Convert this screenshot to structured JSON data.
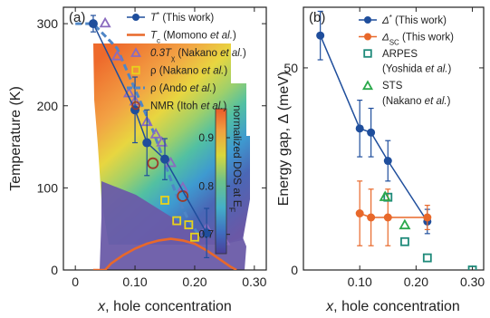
{
  "chart_data": [
    {
      "panel_label": "(a)",
      "type": "scatter",
      "xlabel_italic": "x",
      "xlabel_rest": ", hole concentration",
      "ylabel": "Temperature (K)",
      "xlim": [
        -0.02,
        0.32
      ],
      "ylim": [
        0,
        320
      ],
      "xticks": [
        "0",
        "0.10",
        "0.20",
        "0.30"
      ],
      "xtick_values": [
        0,
        0.1,
        0.2,
        0.3
      ],
      "yticks": [
        "0",
        "100",
        "200",
        "300"
      ],
      "ytick_values": [
        0,
        100,
        200,
        300
      ],
      "colorbar": {
        "label": "normalized DOS at E",
        "label_sub": "F",
        "ticks": [
          "0.9",
          "0.8",
          "0.7"
        ],
        "tick_values": [
          0.9,
          0.8,
          0.7
        ],
        "range": [
          0.66,
          0.96
        ]
      },
      "legend": [
        {
          "marker": "circle-line",
          "color": "#1f4e9c",
          "label": "T* (This work)",
          "symbol": "T",
          "sup": "*",
          "note": " (This work)"
        },
        {
          "marker": "line",
          "color": "#e8682a",
          "label": "Tc (Momono et al.)",
          "symbol": "T",
          "sub": "c",
          "note": " (Momono ",
          "etal": "et al.",
          "tail": ")"
        },
        {
          "marker": "triangle",
          "color": "#8a6bbf",
          "label": "0.3Tχ (Nakano et al.)",
          "symbol": "0.3T",
          "sub": "χ",
          "note": " (Nakano ",
          "etal": "et al.",
          "tail": ")"
        },
        {
          "marker": "square",
          "color": "#e8d21c",
          "label": "ρ (Nakano et al.)",
          "symbol": "ρ",
          "note": " (Nakano ",
          "etal": "et al.",
          "tail": ")"
        },
        {
          "marker": "dash",
          "color": "#4f86c6",
          "label": "ρ (Ando et al.)",
          "symbol": "ρ",
          "note": " (Ando ",
          "etal": "et al.",
          "tail": ")"
        },
        {
          "marker": "circle",
          "color": "#9c3a2a",
          "label": "NMR (Itoh et al.)",
          "symbol": "NMR",
          "note": " (Itoh ",
          "etal": "et al.",
          "tail": ")"
        }
      ],
      "series": [
        {
          "name": "T* (This work)",
          "color": "#1f4e9c",
          "x": [
            0.03,
            0.1,
            0.12,
            0.15,
            0.22
          ],
          "y": [
            300,
            195,
            155,
            135,
            45
          ],
          "yerr": [
            10,
            40,
            40,
            25,
            30
          ]
        },
        {
          "name": "Tc (Momono et al.)",
          "color": "#e8682a",
          "x": [
            0.03,
            0.05,
            0.06,
            0.08,
            0.1,
            0.12,
            0.14,
            0.16,
            0.18,
            0.2,
            0.22,
            0.24,
            0.26,
            0.27
          ],
          "y": [
            0,
            0,
            8,
            18,
            26,
            32,
            36,
            38,
            36,
            32,
            24,
            14,
            4,
            0
          ]
        },
        {
          "name": "0.3Tχ (Nakano et al.)",
          "color": "#8a6bbf",
          "x": [
            0.05,
            0.07,
            0.09,
            0.1,
            0.12,
            0.135,
            0.145,
            0.16,
            0.18,
            0.22,
            0.25
          ],
          "y": [
            300,
            260,
            215,
            205,
            180,
            165,
            155,
            130,
            100,
            50,
            35
          ]
        },
        {
          "name": "ρ (Nakano et al.)",
          "color": "#e8d21c",
          "x": [
            0.15,
            0.17,
            0.19,
            0.2
          ],
          "y": [
            85,
            60,
            55,
            40
          ]
        },
        {
          "name": "ρ (Ando et al.)",
          "color": "#4f86c6",
          "x": [
            0.0,
            0.03,
            0.07,
            0.1,
            0.13,
            0.15,
            0.17,
            0.19,
            0.21
          ],
          "y": [
            300,
            300,
            270,
            220,
            170,
            130,
            90,
            60,
            40
          ]
        },
        {
          "name": "NMR (Itoh et al.)",
          "color": "#9c3a2a",
          "x": [
            0.13,
            0.18
          ],
          "y": [
            130,
            90
          ]
        }
      ]
    },
    {
      "panel_label": "(b)",
      "type": "scatter",
      "xlabel_italic": "x",
      "xlabel_rest": ", hole concentration",
      "ylabel": "Energy gap, Δ  (meV)",
      "xlim": [
        0,
        0.32
      ],
      "ylim": [
        0,
        65
      ],
      "xticks": [
        "0.10",
        "0.20",
        "0.30"
      ],
      "xtick_values": [
        0.1,
        0.2,
        0.3
      ],
      "yticks": [
        "0",
        "50"
      ],
      "ytick_values": [
        0,
        50
      ],
      "legend": [
        {
          "marker": "circle-line",
          "color": "#1f4e9c",
          "label": "Δ* (This work)",
          "symbol": "Δ",
          "sup": "*",
          "note": " (This work)"
        },
        {
          "marker": "circle-line",
          "color": "#e8682a",
          "label": "ΔSC (This work)",
          "symbol": "Δ",
          "sub": "SC",
          "note": " (This work)"
        },
        {
          "marker": "square",
          "color": "#1f8a7a",
          "label": "ARPES",
          "symbol": "ARPES",
          "line2": "(Yoshida ",
          "etal": "et al.",
          "tail": ")"
        },
        {
          "marker": "triangle",
          "color": "#2aa84a",
          "label": "STS",
          "symbol": "STS",
          "line2": "(Nakano ",
          "etal": "et al.",
          "tail": ")"
        }
      ],
      "series": [
        {
          "name": "Δ* (This work)",
          "color": "#1f4e9c",
          "x": [
            0.03,
            0.1,
            0.12,
            0.15,
            0.22
          ],
          "y": [
            58,
            35,
            34,
            27,
            12
          ],
          "yerr": [
            6,
            7,
            6,
            5,
            3
          ]
        },
        {
          "name": "ΔSC (This work)",
          "color": "#e8682a",
          "x": [
            0.1,
            0.12,
            0.15,
            0.22
          ],
          "y": [
            14,
            13,
            13,
            13
          ],
          "yerr": [
            8,
            7,
            7,
            3
          ]
        },
        {
          "name": "ARPES (Yoshida et al.)",
          "color": "#1f8a7a",
          "x": [
            0.15,
            0.18,
            0.22,
            0.3
          ],
          "y": [
            18,
            7,
            3,
            0
          ]
        },
        {
          "name": "STS (Nakano et al.)",
          "color": "#2aa84a",
          "x": [
            0.145,
            0.18
          ],
          "y": [
            18,
            11
          ]
        }
      ]
    }
  ]
}
